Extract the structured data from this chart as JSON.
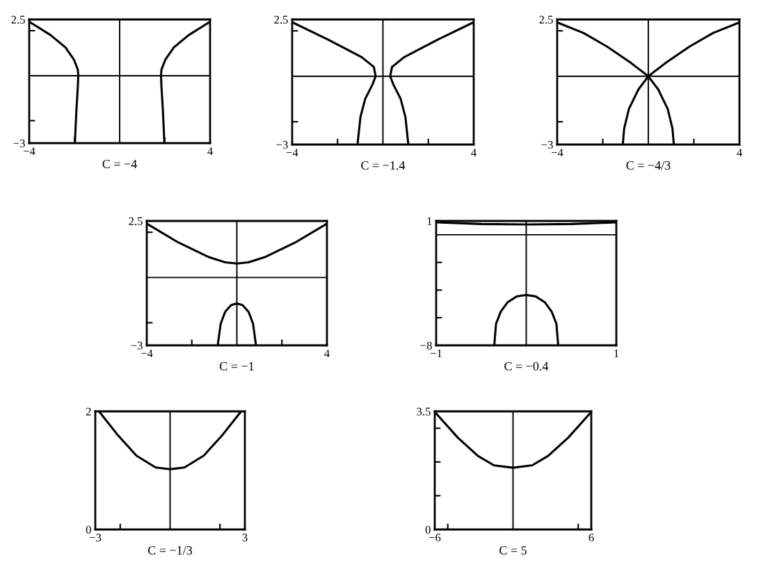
{
  "chart_data": [
    {
      "type": "line",
      "xlabel": "C = −4",
      "xlim": [
        -4,
        4
      ],
      "ylim": [
        -3,
        2.5
      ],
      "xticks": [
        {
          "value": -4,
          "label": "−4"
        },
        {
          "value": -2,
          "label": null
        },
        {
          "value": 2,
          "label": null
        },
        {
          "value": 4,
          "label": "4"
        }
      ],
      "yticks": [
        {
          "value": -3,
          "label": "−3"
        },
        {
          "value": -2,
          "label": null
        },
        {
          "value": 2,
          "label": null
        },
        {
          "value": 2.5,
          "label": "2.5"
        }
      ],
      "ref_lines": [
        {
          "axis": "y",
          "value": 0
        },
        {
          "axis": "x",
          "value": 0
        }
      ],
      "series": [
        {
          "color": "#000000",
          "x": [
            4,
            3.06,
            2.4,
            2.02,
            1.85,
            1.83,
            1.85,
            1.91,
            1.98
          ],
          "values": [
            2.4,
            1.81,
            1.26,
            0.71,
            0.27,
            0,
            -0.5,
            -1.49,
            -3
          ]
        },
        {
          "color": "#000000",
          "x": [
            -4,
            -3.06,
            -2.4,
            -2.02,
            -1.85,
            -1.83,
            -1.85,
            -1.91,
            -1.98
          ],
          "values": [
            2.4,
            1.81,
            1.26,
            0.71,
            0.27,
            0,
            -0.5,
            -1.49,
            -3
          ]
        }
      ]
    },
    {
      "type": "line",
      "xlabel": "C = −1.4",
      "xlim": [
        -4,
        4
      ],
      "ylim": [
        -3,
        2.5
      ],
      "xticks": [
        {
          "value": -4,
          "label": "−4"
        },
        {
          "value": -2,
          "label": null
        },
        {
          "value": 2,
          "label": null
        },
        {
          "value": 4,
          "label": "4"
        }
      ],
      "yticks": [
        {
          "value": -3,
          "label": "−3"
        },
        {
          "value": -2,
          "label": null
        },
        {
          "value": 2,
          "label": null
        },
        {
          "value": 2.5,
          "label": "2.5"
        }
      ],
      "ref_lines": [
        {
          "axis": "y",
          "value": 0
        },
        {
          "axis": "x",
          "value": 0
        }
      ],
      "series": [
        {
          "color": "#000000",
          "x": [
            4,
            2.41,
            0.93,
            0.4,
            0.32,
            0.46,
            0.78,
            0.99,
            1.12
          ],
          "values": [
            2.38,
            1.61,
            0.84,
            0.41,
            0,
            -0.36,
            -0.99,
            -1.79,
            -3
          ]
        },
        {
          "color": "#000000",
          "x": [
            -4,
            -2.41,
            -0.93,
            -0.4,
            -0.32,
            -0.46,
            -0.78,
            -0.99,
            -1.12
          ],
          "values": [
            2.38,
            1.61,
            0.84,
            0.41,
            0,
            -0.36,
            -0.99,
            -1.79,
            -3
          ]
        }
      ]
    },
    {
      "type": "line",
      "xlabel": "C = −4/3",
      "xlim": [
        -4,
        4
      ],
      "ylim": [
        -3,
        2.5
      ],
      "xticks": [
        {
          "value": -4,
          "label": "−4"
        },
        {
          "value": -2,
          "label": null
        },
        {
          "value": 2,
          "label": null
        },
        {
          "value": 4,
          "label": "4"
        }
      ],
      "yticks": [
        {
          "value": -3,
          "label": "−3"
        },
        {
          "value": -2,
          "label": null
        },
        {
          "value": 2,
          "label": null
        },
        {
          "value": 2.5,
          "label": "2.5"
        }
      ],
      "ref_lines": [
        {
          "axis": "y",
          "value": 0
        },
        {
          "axis": "x",
          "value": 0
        }
      ],
      "series": [
        {
          "color": "#000000",
          "x": [
            -4,
            -2.85,
            -1.8,
            -0.75,
            0,
            0.43,
            0.85,
            1.06,
            1.12
          ],
          "values": [
            2.37,
            1.91,
            1.3,
            0.58,
            0,
            -0.57,
            -1.43,
            -2.29,
            -3
          ]
        },
        {
          "color": "#000000",
          "x": [
            4,
            2.85,
            1.8,
            0.75,
            0,
            -0.43,
            -0.85,
            -1.06,
            -1.12
          ],
          "values": [
            2.37,
            1.91,
            1.3,
            0.58,
            0,
            -0.57,
            -1.43,
            -2.29,
            -3
          ]
        }
      ]
    },
    {
      "type": "line",
      "xlabel": "C = −1",
      "xlim": [
        -4,
        4
      ],
      "ylim": [
        -3,
        2.5
      ],
      "xticks": [
        {
          "value": -4,
          "label": "−4"
        },
        {
          "value": -2,
          "label": null
        },
        {
          "value": 2,
          "label": null
        },
        {
          "value": 4,
          "label": "4"
        }
      ],
      "yticks": [
        {
          "value": -3,
          "label": "−3"
        },
        {
          "value": -2,
          "label": null
        },
        {
          "value": 2,
          "label": null
        },
        {
          "value": 2.5,
          "label": "2.5"
        }
      ],
      "ref_lines": [
        {
          "axis": "y",
          "value": 0
        },
        {
          "axis": "x",
          "value": 0
        }
      ],
      "series": [
        {
          "color": "#000000",
          "x": [
            -4,
            -2.58,
            -1.24,
            -0.52,
            0,
            0.52,
            1.24,
            2.58,
            4
          ],
          "values": [
            2.38,
            1.54,
            0.9,
            0.67,
            0.62,
            0.67,
            0.9,
            1.54,
            2.38
          ]
        },
        {
          "color": "#000000",
          "x": [
            -0.85,
            -0.72,
            -0.52,
            -0.25,
            0,
            0.25,
            0.52,
            0.72,
            0.85
          ],
          "values": [
            -3,
            -2.05,
            -1.52,
            -1.22,
            -1.15,
            -1.22,
            -1.52,
            -2.05,
            -3
          ]
        }
      ]
    },
    {
      "type": "line",
      "xlabel": "C = −0.4",
      "xlim": [
        -1,
        1
      ],
      "ylim": [
        -8,
        1
      ],
      "xticks": [
        {
          "value": -1,
          "label": "−1"
        },
        {
          "value": 1,
          "label": "1"
        }
      ],
      "yticks": [
        {
          "value": -8,
          "label": "−8"
        },
        {
          "value": -6,
          "label": null
        },
        {
          "value": -4,
          "label": null
        },
        {
          "value": -2,
          "label": null
        },
        {
          "value": 1,
          "label": "1"
        }
      ],
      "ref_lines": [
        {
          "axis": "y",
          "value": 0
        },
        {
          "axis": "x",
          "value": 0
        }
      ],
      "series": [
        {
          "color": "#000000",
          "x": [
            -1,
            -0.5,
            0,
            0.5,
            1
          ],
          "values": [
            0.9,
            0.78,
            0.75,
            0.78,
            0.9
          ]
        },
        {
          "color": "#000000",
          "x": [
            -0.355,
            -0.335,
            -0.283,
            -0.206,
            -0.103,
            0,
            0.103,
            0.206,
            0.283,
            0.335,
            0.355
          ],
          "values": [
            -8,
            -6.44,
            -5.57,
            -4.88,
            -4.45,
            -4.36,
            -4.45,
            -4.88,
            -5.57,
            -6.44,
            -8
          ]
        }
      ]
    },
    {
      "type": "line",
      "xlabel": "C = −1/3",
      "xlim": [
        -3,
        3
      ],
      "ylim": [
        0,
        2
      ],
      "xticks": [
        {
          "value": -3,
          "label": "−3"
        },
        {
          "value": -2,
          "label": null
        },
        {
          "value": 2,
          "label": null
        },
        {
          "value": 3,
          "label": "3"
        }
      ],
      "yticks": [
        {
          "value": 0,
          "label": "0"
        },
        {
          "value": 2,
          "label": "2"
        }
      ],
      "ref_lines": [
        {
          "axis": "x",
          "value": 0
        }
      ],
      "series": [
        {
          "color": "#000000",
          "x": [
            -2.85,
            -2.12,
            -1.35,
            -0.58,
            0,
            0.58,
            1.35,
            2.12,
            2.85
          ],
          "values": [
            2,
            1.61,
            1.25,
            1.05,
            1.02,
            1.05,
            1.25,
            1.61,
            2
          ]
        }
      ]
    },
    {
      "type": "line",
      "xlabel": "C = 5",
      "xlim": [
        -6,
        6
      ],
      "ylim": [
        0,
        3.5
      ],
      "xticks": [
        {
          "value": -6,
          "label": "−6"
        },
        {
          "value": -5,
          "label": null
        },
        {
          "value": 5,
          "label": null
        },
        {
          "value": 6,
          "label": "6"
        }
      ],
      "yticks": [
        {
          "value": 0,
          "label": "0"
        },
        {
          "value": 1,
          "label": null
        },
        {
          "value": 2,
          "label": null
        },
        {
          "value": 3,
          "label": null
        },
        {
          "value": 3.5,
          "label": "3.5"
        }
      ],
      "ref_lines": [
        {
          "axis": "x",
          "value": 0
        }
      ],
      "series": [
        {
          "color": "#000000",
          "x": [
            -5.92,
            -4.23,
            -2.69,
            -1.46,
            0,
            1.46,
            2.69,
            4.23,
            5.92
          ],
          "values": [
            3.45,
            2.72,
            2.18,
            1.9,
            1.83,
            1.9,
            2.18,
            2.72,
            3.45
          ]
        }
      ]
    }
  ]
}
